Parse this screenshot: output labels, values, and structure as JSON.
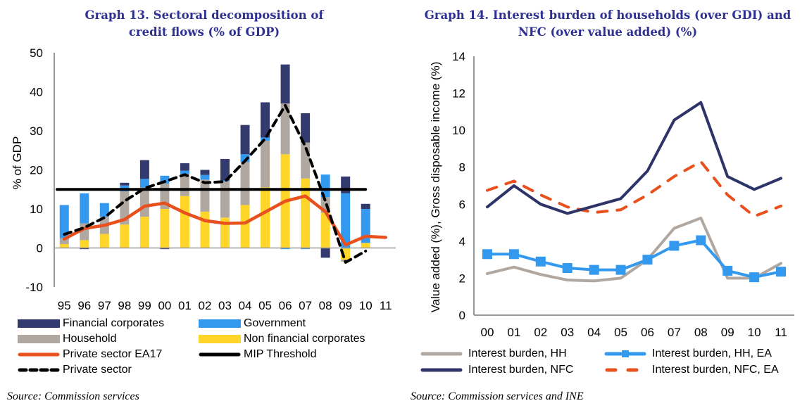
{
  "left": {
    "title_line1": "Graph 13. Sectoral decomposition of",
    "title_line2": "credit flows (% of GDP)",
    "source": "Source: Commission services"
  },
  "right": {
    "title_line1": "Graph 14. Interest burden of households (over GDI) and",
    "title_line2": "NFC (over value added) (%)",
    "source": "Source: Commission services and INE"
  },
  "chart_data": [
    {
      "type": "bar",
      "stacked": true,
      "title": "Graph 13. Sectoral decomposition of credit flows (% of GDP)",
      "xlabel": "",
      "ylabel": "% of GDP",
      "ylim": [
        -10,
        50
      ],
      "yticks": [
        -10,
        0,
        10,
        20,
        30,
        40,
        50
      ],
      "categories": [
        "95",
        "96",
        "97",
        "98",
        "99",
        "00",
        "01",
        "02",
        "03",
        "04",
        "05",
        "06",
        "07",
        "08",
        "09",
        "10",
        "11"
      ],
      "colors": {
        "Financial corporates": "#333a6e",
        "Government": "#3399ee",
        "Household": "#b0a8a0",
        "Non financial corporates": "#ffd52a",
        "Private sector EA17": "#e8501e",
        "MIP Threshold": "#000000",
        "Private sector": "#000000"
      },
      "series": [
        {
          "name": "Non financial corporates",
          "kind": "bar",
          "values": [
            1.0,
            2.0,
            3.6,
            6.0,
            8.0,
            10.0,
            13.3,
            9.3,
            7.8,
            11.0,
            15.5,
            24.0,
            17.8,
            9.0,
            -3.0,
            1.3,
            null
          ]
        },
        {
          "name": "Household",
          "kind": "bar",
          "values": [
            1.5,
            4.3,
            4.4,
            8.5,
            7.5,
            6.5,
            5.7,
            8.2,
            9.2,
            11.0,
            12.0,
            13.0,
            9.2,
            4.0,
            -0.5,
            0.0,
            null
          ]
        },
        {
          "name": "Government",
          "kind": "bar",
          "values": [
            8.5,
            7.7,
            3.5,
            1.5,
            2.2,
            2.0,
            0.8,
            1.2,
            0.3,
            2.0,
            0.8,
            -0.3,
            -0.3,
            5.8,
            14.0,
            8.7,
            null
          ]
        },
        {
          "name": "Financial corporates",
          "kind": "bar",
          "values": [
            0.0,
            -0.3,
            0.0,
            0.7,
            4.8,
            -0.3,
            1.9,
            1.3,
            5.5,
            7.5,
            9.0,
            10.0,
            7.5,
            -2.5,
            4.3,
            1.3,
            null
          ]
        },
        {
          "name": "Private sector EA17",
          "kind": "line",
          "values": [
            2.3,
            5.0,
            5.8,
            7.3,
            10.7,
            11.5,
            9.0,
            7.0,
            6.3,
            6.4,
            9.2,
            12.0,
            13.3,
            9.3,
            0.8,
            3.0,
            2.7
          ]
        },
        {
          "name": "MIP Threshold",
          "kind": "line",
          "values": [
            15,
            15,
            15,
            15,
            15,
            15,
            15,
            15,
            15,
            15,
            15,
            15,
            15,
            15,
            15,
            15,
            null
          ]
        },
        {
          "name": "Private sector",
          "kind": "dashed-line",
          "values": [
            3.5,
            5.2,
            7.8,
            12.0,
            15.3,
            17.0,
            18.8,
            16.7,
            17.0,
            22.3,
            28.0,
            36.5,
            26.0,
            12.0,
            -3.7,
            -0.8,
            null
          ]
        }
      ],
      "legend": {
        "placement": "bottom",
        "entries": [
          "Financial corporates",
          "Government",
          "Household",
          "Non financial corporates",
          "Private sector EA17",
          "MIP Threshold",
          "Private sector"
        ]
      },
      "grid": false
    },
    {
      "type": "line",
      "title": "Graph 14. Interest burden of households (over GDI) and NFC (over value added) (%)",
      "xlabel": "",
      "ylabel": "Value added (%), Gross disposable income (%)",
      "ylim": [
        0,
        14
      ],
      "yticks": [
        0,
        2,
        4,
        6,
        8,
        10,
        12,
        14
      ],
      "categories": [
        "00",
        "01",
        "02",
        "03",
        "04",
        "05",
        "06",
        "07",
        "08",
        "09",
        "10",
        "11"
      ],
      "series": [
        {
          "name": "Interest burden, HH",
          "style": "solid",
          "color": "#b0a8a0",
          "values": [
            2.25,
            2.6,
            2.2,
            1.9,
            1.85,
            2.0,
            3.0,
            4.7,
            5.25,
            2.0,
            2.0,
            2.8
          ]
        },
        {
          "name": "Interest burden, HH, EA",
          "style": "solid-square-markers",
          "color": "#3399ee",
          "values": [
            3.3,
            3.3,
            2.9,
            2.55,
            2.45,
            2.45,
            3.0,
            3.75,
            4.05,
            2.4,
            2.05,
            2.35
          ]
        },
        {
          "name": "Interest burden, NFC",
          "style": "solid",
          "color": "#2e3468",
          "values": [
            5.85,
            7.0,
            6.0,
            5.5,
            5.9,
            6.3,
            7.8,
            10.55,
            11.5,
            7.5,
            6.8,
            7.4
          ]
        },
        {
          "name": "Interest burden, NFC, EA",
          "style": "dashed",
          "color": "#e8501e",
          "values": [
            6.75,
            7.25,
            6.5,
            5.85,
            5.55,
            5.7,
            6.5,
            7.5,
            8.3,
            6.5,
            5.35,
            5.9
          ]
        }
      ],
      "legend": {
        "placement": "bottom",
        "entries": [
          "Interest burden, HH",
          "Interest burden, HH, EA",
          "Interest burden, NFC",
          "Interest burden, NFC, EA"
        ]
      },
      "grid": false
    }
  ]
}
